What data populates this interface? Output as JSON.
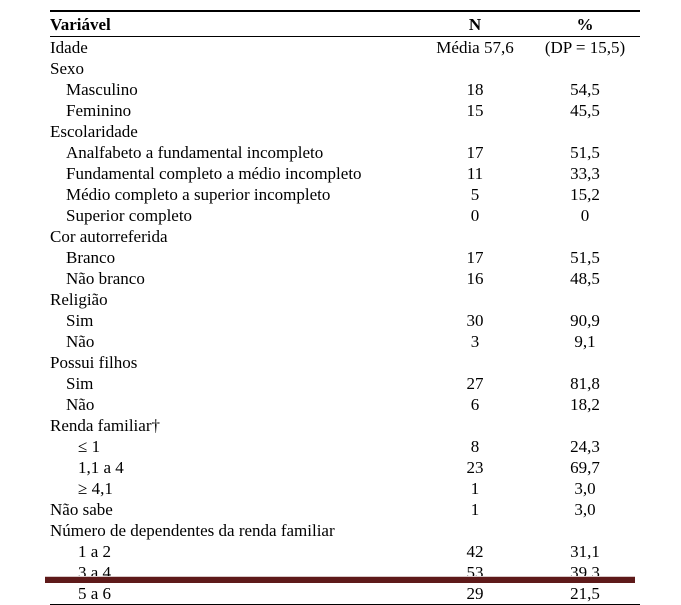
{
  "table": {
    "background_color": "#ffffff",
    "text_color": "#000000",
    "font_family": "Times New Roman",
    "font_size_pt": 12,
    "rule_color": "#000000",
    "footer_bar_color": "#5e1a1a",
    "columns": {
      "var": "Variável",
      "n": "N",
      "pct": "%"
    },
    "rows": [
      {
        "label": "Idade",
        "indent": 0,
        "n": "Média 57,6",
        "pct": "(DP = 15,5)"
      },
      {
        "label": "Sexo",
        "indent": 0,
        "n": "",
        "pct": ""
      },
      {
        "label": "Masculino",
        "indent": 1,
        "n": "18",
        "pct": "54,5"
      },
      {
        "label": "Feminino",
        "indent": 1,
        "n": "15",
        "pct": "45,5"
      },
      {
        "label": "Escolaridade",
        "indent": 0,
        "n": "",
        "pct": ""
      },
      {
        "label": "Analfabeto a fundamental incompleto",
        "indent": 1,
        "n": "17",
        "pct": "51,5"
      },
      {
        "label": "Fundamental completo a médio incompleto",
        "indent": 1,
        "n": "11",
        "pct": "33,3"
      },
      {
        "label": "Médio completo a superior incompleto",
        "indent": 1,
        "n": "5",
        "pct": "15,2"
      },
      {
        "label": "Superior completo",
        "indent": 1,
        "n": "0",
        "pct": "0"
      },
      {
        "label": "Cor autorreferida",
        "indent": 0,
        "n": "",
        "pct": ""
      },
      {
        "label": "Branco",
        "indent": 1,
        "n": "17",
        "pct": "51,5"
      },
      {
        "label": "Não branco",
        "indent": 1,
        "n": "16",
        "pct": "48,5"
      },
      {
        "label": "Religião",
        "indent": 0,
        "n": "",
        "pct": ""
      },
      {
        "label": "Sim",
        "indent": 1,
        "n": "30",
        "pct": "90,9"
      },
      {
        "label": "Não",
        "indent": 1,
        "n": "3",
        "pct": "9,1"
      },
      {
        "label": "Possui filhos",
        "indent": 0,
        "n": "",
        "pct": ""
      },
      {
        "label": "Sim",
        "indent": 1,
        "n": "27",
        "pct": "81,8"
      },
      {
        "label": "Não",
        "indent": 1,
        "n": "6",
        "pct": "18,2"
      },
      {
        "label": "Renda familiar†",
        "indent": 0,
        "n": "",
        "pct": ""
      },
      {
        "label": "≤ 1",
        "indent": 2,
        "n": "8",
        "pct": "24,3"
      },
      {
        "label": "1,1 a 4",
        "indent": 2,
        "n": "23",
        "pct": "69,7"
      },
      {
        "label": "≥ 4,1",
        "indent": 2,
        "n": "1",
        "pct": "3,0"
      },
      {
        "label": "Não sabe",
        "indent": 0,
        "n": "1",
        "pct": "3,0"
      },
      {
        "label": "Número de dependentes da renda familiar",
        "indent": 0,
        "n": "",
        "pct": ""
      },
      {
        "label": "1 a 2",
        "indent": 2,
        "n": "42",
        "pct": "31,1"
      },
      {
        "label": "3 a 4",
        "indent": 2,
        "n": "53",
        "pct": "39,3"
      },
      {
        "label": "5 a 6",
        "indent": 2,
        "n": "29",
        "pct": "21,5"
      }
    ]
  }
}
